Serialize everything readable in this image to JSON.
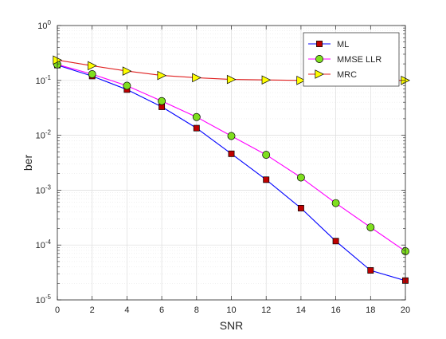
{
  "chart_data": {
    "type": "line",
    "xlabel": "SNR",
    "ylabel": "ber",
    "xlim": [
      0,
      20
    ],
    "ylim": [
      1e-05,
      1
    ],
    "y_scale": "log",
    "grid": true,
    "minor_grid": true,
    "legend_position": "top-right",
    "x_ticks": [
      0,
      2,
      4,
      6,
      8,
      10,
      12,
      14,
      16,
      18,
      20
    ],
    "y_tick_exponents": [
      0,
      -1,
      -2,
      -3,
      -4,
      -5
    ],
    "x": [
      0,
      2,
      4,
      6,
      8,
      10,
      12,
      14,
      16,
      18,
      20
    ],
    "series": [
      {
        "name": "ML",
        "color": "#0000ff",
        "marker": "square",
        "marker_fill": "#c00000",
        "values": [
          0.19,
          0.12,
          0.068,
          0.033,
          0.0135,
          0.0046,
          0.00155,
          0.00047,
          0.000118,
          3.45e-05,
          2.25e-05
        ]
      },
      {
        "name": "MMSE LLR",
        "color": "#ff00ff",
        "marker": "circle",
        "marker_fill": "#7fdf1f",
        "values": [
          0.195,
          0.13,
          0.08,
          0.042,
          0.0215,
          0.0097,
          0.0044,
          0.0017,
          0.00058,
          0.00021,
          7.7e-05
        ]
      },
      {
        "name": "MRC",
        "color": "#e02020",
        "marker": "triangle-right",
        "marker_fill": "#ffff00",
        "values": [
          0.235,
          0.185,
          0.148,
          0.123,
          0.112,
          0.104,
          0.102,
          0.1,
          0.1,
          0.1,
          0.1
        ]
      }
    ]
  }
}
